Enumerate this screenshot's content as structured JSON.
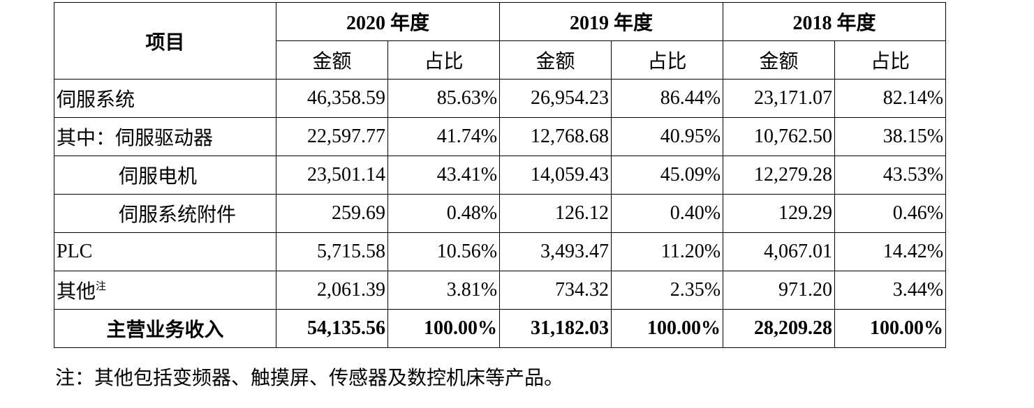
{
  "header": {
    "item_label": "项目",
    "years": [
      "2020 年度",
      "2019 年度",
      "2018 年度"
    ],
    "amount_label": "金额",
    "ratio_label": "占比"
  },
  "rows": [
    {
      "label": "伺服系统",
      "note": "",
      "values": [
        "46,358.59",
        "85.63%",
        "26,954.23",
        "86.44%",
        "23,171.07",
        "82.14%"
      ]
    },
    {
      "label": "其中：伺服驱动器",
      "note": "",
      "values": [
        "22,597.77",
        "41.74%",
        "12,768.68",
        "40.95%",
        "10,762.50",
        "38.15%"
      ]
    },
    {
      "label": "伺服电机",
      "note": "",
      "values": [
        "23,501.14",
        "43.41%",
        "14,059.43",
        "45.09%",
        "12,279.28",
        "43.53%"
      ]
    },
    {
      "label": "伺服系统附件",
      "note": "",
      "values": [
        "259.69",
        "0.48%",
        "126.12",
        "0.40%",
        "129.29",
        "0.46%"
      ]
    },
    {
      "label": "PLC",
      "note": "",
      "values": [
        "5,715.58",
        "10.56%",
        "3,493.47",
        "11.20%",
        "4,067.01",
        "14.42%"
      ]
    },
    {
      "label": "其他",
      "note": "注",
      "values": [
        "2,061.39",
        "3.81%",
        "734.32",
        "2.35%",
        "971.20",
        "3.44%"
      ]
    },
    {
      "label": "主营业务收入",
      "note": "",
      "values": [
        "54,135.56",
        "100.00%",
        "31,182.03",
        "100.00%",
        "28,209.28",
        "100.00%"
      ]
    }
  ],
  "footnote": "注：其他包括变频器、触摸屏、传感器及数控机床等产品。"
}
